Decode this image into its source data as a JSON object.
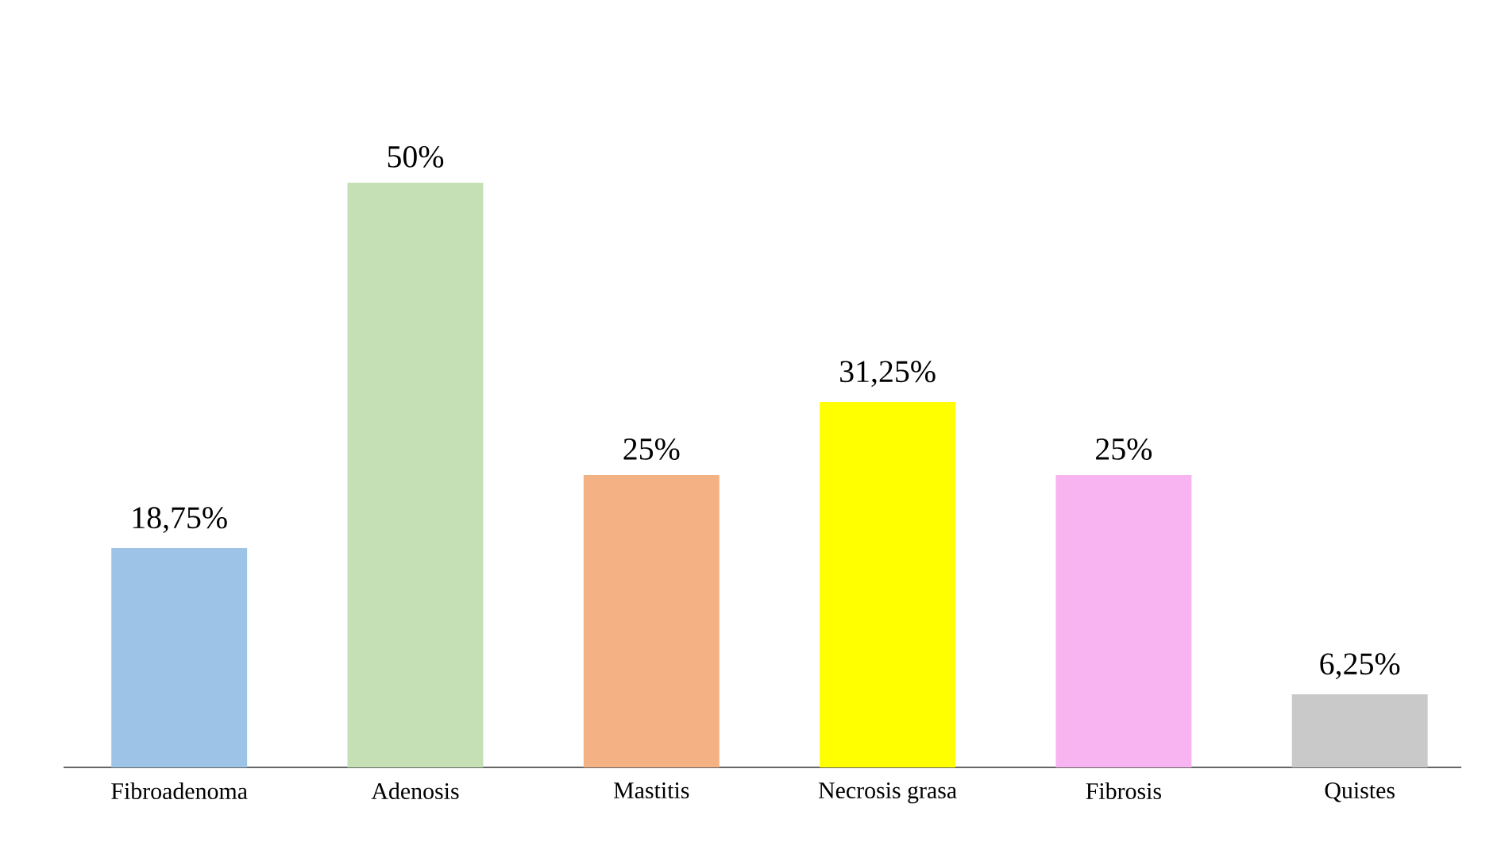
{
  "chart_data": {
    "type": "bar",
    "categories": [
      "Fibroadenoma",
      "Adenosis",
      "Mastitis",
      "Necrosis grasa",
      "Fibrosis",
      "Quistes"
    ],
    "values": [
      18.75,
      50,
      25,
      31.25,
      25,
      6.25
    ],
    "value_labels": [
      "18,75%",
      "50%",
      "25%",
      "31,25%",
      "25%",
      "6,25%"
    ],
    "colors": [
      "#9dc3e6",
      "#c5e0b4",
      "#f4b183",
      "#ffff00",
      "#f8b4f0",
      "#c9c9c9"
    ]
  }
}
